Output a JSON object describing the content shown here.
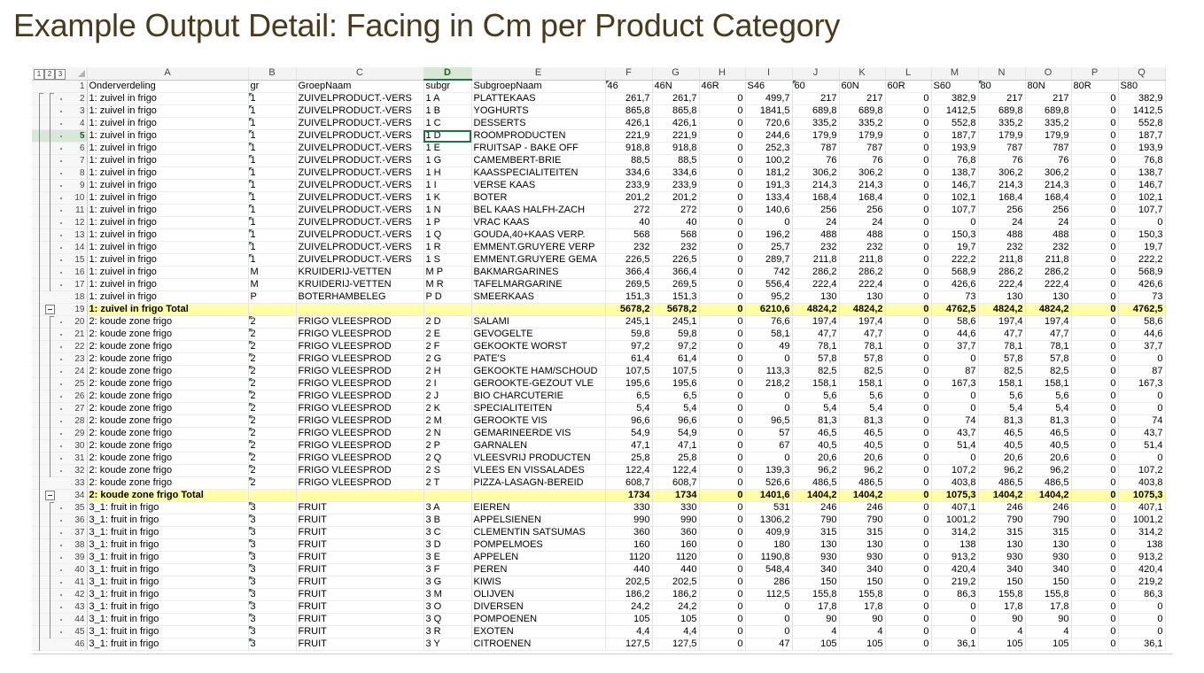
{
  "slide_title": "Example Output Detail: Facing in Cm per Product Category",
  "outline_levels": [
    "1",
    "2",
    "3"
  ],
  "columns": [
    "A",
    "B",
    "C",
    "D",
    "E",
    "F",
    "G",
    "H",
    "I",
    "J",
    "K",
    "L",
    "M",
    "N",
    "O",
    "P",
    "Q"
  ],
  "active_column": "D",
  "active_row": "5",
  "header_row": {
    "rn": "1",
    "cells": [
      "Onderverdeling",
      "gr",
      "GroepNaam",
      "subgr",
      "SubgroepNaam",
      "46",
      "46N",
      "46R",
      "S46",
      "60",
      "60N",
      "60R",
      "S60",
      "80",
      "80N",
      "80R",
      "S80"
    ]
  },
  "rows": [
    {
      "rn": "2",
      "cells": [
        "1: zuivel in frigo",
        "1",
        "ZUIVELPRODUCT.-VERS",
        "1 A",
        "PLATTEKAAS",
        "261,7",
        "261,7",
        "0",
        "499,7",
        "217",
        "217",
        "0",
        "382,9",
        "217",
        "217",
        "0",
        "382,9"
      ]
    },
    {
      "rn": "3",
      "cells": [
        "1: zuivel in frigo",
        "1",
        "ZUIVELPRODUCT.-VERS",
        "1 B",
        "YOGHURTS",
        "865,8",
        "865,8",
        "0",
        "1841,5",
        "689,8",
        "689,8",
        "0",
        "1412,5",
        "689,8",
        "689,8",
        "0",
        "1412,5"
      ]
    },
    {
      "rn": "4",
      "cells": [
        "1: zuivel in frigo",
        "1",
        "ZUIVELPRODUCT.-VERS",
        "1 C",
        "DESSERTS",
        "426,1",
        "426,1",
        "0",
        "720,6",
        "335,2",
        "335,2",
        "0",
        "552,8",
        "335,2",
        "335,2",
        "0",
        "552,8"
      ]
    },
    {
      "rn": "5",
      "cells": [
        "1: zuivel in frigo",
        "1",
        "ZUIVELPRODUCT.-VERS",
        "1 D",
        "ROOMPRODUCTEN",
        "221,9",
        "221,9",
        "0",
        "244,6",
        "179,9",
        "179,9",
        "0",
        "187,7",
        "179,9",
        "179,9",
        "0",
        "187,7"
      ]
    },
    {
      "rn": "6",
      "cells": [
        "1: zuivel in frigo",
        "1",
        "ZUIVELPRODUCT.-VERS",
        "1 E",
        "FRUITSAP - BAKE OFF",
        "918,8",
        "918,8",
        "0",
        "252,3",
        "787",
        "787",
        "0",
        "193,9",
        "787",
        "787",
        "0",
        "193,9"
      ]
    },
    {
      "rn": "7",
      "cells": [
        "1: zuivel in frigo",
        "1",
        "ZUIVELPRODUCT.-VERS",
        "1 G",
        "CAMEMBERT-BRIE",
        "88,5",
        "88,5",
        "0",
        "100,2",
        "76",
        "76",
        "0",
        "76,8",
        "76",
        "76",
        "0",
        "76,8"
      ]
    },
    {
      "rn": "8",
      "cells": [
        "1: zuivel in frigo",
        "1",
        "ZUIVELPRODUCT.-VERS",
        "1 H",
        "KAASSPECIALITEITEN",
        "334,6",
        "334,6",
        "0",
        "181,2",
        "306,2",
        "306,2",
        "0",
        "138,7",
        "306,2",
        "306,2",
        "0",
        "138,7"
      ]
    },
    {
      "rn": "9",
      "cells": [
        "1: zuivel in frigo",
        "1",
        "ZUIVELPRODUCT.-VERS",
        "1 I",
        "VERSE KAAS",
        "233,9",
        "233,9",
        "0",
        "191,3",
        "214,3",
        "214,3",
        "0",
        "146,7",
        "214,3",
        "214,3",
        "0",
        "146,7"
      ]
    },
    {
      "rn": "10",
      "cells": [
        "1: zuivel in frigo",
        "1",
        "ZUIVELPRODUCT.-VERS",
        "1 K",
        "BOTER",
        "201,2",
        "201,2",
        "0",
        "133,4",
        "168,4",
        "168,4",
        "0",
        "102,1",
        "168,4",
        "168,4",
        "0",
        "102,1"
      ]
    },
    {
      "rn": "11",
      "cells": [
        "1: zuivel in frigo",
        "1",
        "ZUIVELPRODUCT.-VERS",
        "1 N",
        "BEL KAAS HALFH-ZACH",
        "272",
        "272",
        "0",
        "140,6",
        "256",
        "256",
        "0",
        "107,7",
        "256",
        "256",
        "0",
        "107,7"
      ]
    },
    {
      "rn": "12",
      "cells": [
        "1: zuivel in frigo",
        "1",
        "ZUIVELPRODUCT.-VERS",
        "1 P",
        "VRAC KAAS",
        "40",
        "40",
        "0",
        "0",
        "24",
        "24",
        "0",
        "0",
        "24",
        "24",
        "0",
        "0"
      ]
    },
    {
      "rn": "13",
      "cells": [
        "1: zuivel in frigo",
        "1",
        "ZUIVELPRODUCT.-VERS",
        "1 Q",
        "GOUDA,40+KAAS VERP.",
        "568",
        "568",
        "0",
        "196,2",
        "488",
        "488",
        "0",
        "150,3",
        "488",
        "488",
        "0",
        "150,3"
      ]
    },
    {
      "rn": "14",
      "cells": [
        "1: zuivel in frigo",
        "1",
        "ZUIVELPRODUCT.-VERS",
        "1 R",
        "EMMENT.GRUYERE VERP",
        "232",
        "232",
        "0",
        "25,7",
        "232",
        "232",
        "0",
        "19,7",
        "232",
        "232",
        "0",
        "19,7"
      ]
    },
    {
      "rn": "15",
      "cells": [
        "1: zuivel in frigo",
        "1",
        "ZUIVELPRODUCT.-VERS",
        "1 S",
        "EMMENT.GRUYERE GEMA",
        "226,5",
        "226,5",
        "0",
        "289,7",
        "211,8",
        "211,8",
        "0",
        "222,2",
        "211,8",
        "211,8",
        "0",
        "222,2"
      ]
    },
    {
      "rn": "16",
      "cells": [
        "1: zuivel in frigo",
        "M",
        "KRUIDERIJ-VETTEN",
        "M P",
        "BAKMARGARINES",
        "366,4",
        "366,4",
        "0",
        "742",
        "286,2",
        "286,2",
        "0",
        "568,9",
        "286,2",
        "286,2",
        "0",
        "568,9"
      ]
    },
    {
      "rn": "17",
      "cells": [
        "1: zuivel in frigo",
        "M",
        "KRUIDERIJ-VETTEN",
        "M R",
        "TAFELMARGARINE",
        "269,5",
        "269,5",
        "0",
        "556,4",
        "222,4",
        "222,4",
        "0",
        "426,6",
        "222,4",
        "222,4",
        "0",
        "426,6"
      ]
    },
    {
      "rn": "18",
      "cells": [
        "1: zuivel in frigo",
        "P",
        "BOTERHAMBELEG",
        "P D",
        "SMEERKAAS",
        "151,3",
        "151,3",
        "0",
        "95,2",
        "130",
        "130",
        "0",
        "73",
        "130",
        "130",
        "0",
        "73"
      ]
    },
    {
      "rn": "19",
      "total": true,
      "cells": [
        "1: zuivel in frigo Total",
        "",
        "",
        "",
        "",
        "5678,2",
        "5678,2",
        "0",
        "6210,6",
        "4824,2",
        "4824,2",
        "0",
        "4762,5",
        "4824,2",
        "4824,2",
        "0",
        "4762,5"
      ]
    },
    {
      "rn": "20",
      "cells": [
        "2: koude zone frigo",
        "2",
        "FRIGO VLEESPROD",
        "2 D",
        "SALAMI",
        "245,1",
        "245,1",
        "0",
        "76,6",
        "197,4",
        "197,4",
        "0",
        "58,6",
        "197,4",
        "197,4",
        "0",
        "58,6"
      ]
    },
    {
      "rn": "21",
      "cells": [
        "2: koude zone frigo",
        "2",
        "FRIGO VLEESPROD",
        "2 E",
        "GEVOGELTE",
        "59,8",
        "59,8",
        "0",
        "58,1",
        "47,7",
        "47,7",
        "0",
        "44,6",
        "47,7",
        "47,7",
        "0",
        "44,6"
      ]
    },
    {
      "rn": "22",
      "cells": [
        "2: koude zone frigo",
        "2",
        "FRIGO VLEESPROD",
        "2 F",
        "GEKOOKTE WORST",
        "97,2",
        "97,2",
        "0",
        "49",
        "78,1",
        "78,1",
        "0",
        "37,7",
        "78,1",
        "78,1",
        "0",
        "37,7"
      ]
    },
    {
      "rn": "23",
      "cells": [
        "2: koude zone frigo",
        "2",
        "FRIGO VLEESPROD",
        "2 G",
        "PATE'S",
        "61,4",
        "61,4",
        "0",
        "0",
        "57,8",
        "57,8",
        "0",
        "0",
        "57,8",
        "57,8",
        "0",
        "0"
      ]
    },
    {
      "rn": "24",
      "cells": [
        "2: koude zone frigo",
        "2",
        "FRIGO VLEESPROD",
        "2 H",
        "GEKOOKTE HAM/SCHOUD",
        "107,5",
        "107,5",
        "0",
        "113,3",
        "82,5",
        "82,5",
        "0",
        "87",
        "82,5",
        "82,5",
        "0",
        "87"
      ]
    },
    {
      "rn": "25",
      "cells": [
        "2: koude zone frigo",
        "2",
        "FRIGO VLEESPROD",
        "2 I",
        "GEROOKTE-GEZOUT VLE",
        "195,6",
        "195,6",
        "0",
        "218,2",
        "158,1",
        "158,1",
        "0",
        "167,3",
        "158,1",
        "158,1",
        "0",
        "167,3"
      ]
    },
    {
      "rn": "26",
      "cells": [
        "2: koude zone frigo",
        "2",
        "FRIGO VLEESPROD",
        "2 J",
        "BIO CHARCUTERIE",
        "6,5",
        "6,5",
        "0",
        "0",
        "5,6",
        "5,6",
        "0",
        "0",
        "5,6",
        "5,6",
        "0",
        "0"
      ]
    },
    {
      "rn": "27",
      "cells": [
        "2: koude zone frigo",
        "2",
        "FRIGO VLEESPROD",
        "2 K",
        "SPECIALITEITEN",
        "5,4",
        "5,4",
        "0",
        "0",
        "5,4",
        "5,4",
        "0",
        "0",
        "5,4",
        "5,4",
        "0",
        "0"
      ]
    },
    {
      "rn": "28",
      "cells": [
        "2: koude zone frigo",
        "2",
        "FRIGO VLEESPROD",
        "2 M",
        "GEROOKTE VIS",
        "96,6",
        "96,6",
        "0",
        "96,5",
        "81,3",
        "81,3",
        "0",
        "74",
        "81,3",
        "81,3",
        "0",
        "74"
      ]
    },
    {
      "rn": "29",
      "cells": [
        "2: koude zone frigo",
        "2",
        "FRIGO VLEESPROD",
        "2 N",
        "GEMARINEERDE VIS",
        "54,9",
        "54,9",
        "0",
        "57",
        "46,5",
        "46,5",
        "0",
        "43,7",
        "46,5",
        "46,5",
        "0",
        "43,7"
      ]
    },
    {
      "rn": "30",
      "cells": [
        "2: koude zone frigo",
        "2",
        "FRIGO VLEESPROD",
        "2 P",
        "GARNALEN",
        "47,1",
        "47,1",
        "0",
        "67",
        "40,5",
        "40,5",
        "0",
        "51,4",
        "40,5",
        "40,5",
        "0",
        "51,4"
      ]
    },
    {
      "rn": "31",
      "cells": [
        "2: koude zone frigo",
        "2",
        "FRIGO VLEESPROD",
        "2 Q",
        "VLEESVRIJ PRODUCTEN",
        "25,8",
        "25,8",
        "0",
        "0",
        "20,6",
        "20,6",
        "0",
        "0",
        "20,6",
        "20,6",
        "0",
        "0"
      ]
    },
    {
      "rn": "32",
      "cells": [
        "2: koude zone frigo",
        "2",
        "FRIGO VLEESPROD",
        "2 S",
        "VLEES EN VISSALADES",
        "122,4",
        "122,4",
        "0",
        "139,3",
        "96,2",
        "96,2",
        "0",
        "107,2",
        "96,2",
        "96,2",
        "0",
        "107,2"
      ]
    },
    {
      "rn": "33",
      "cells": [
        "2: koude zone frigo",
        "2",
        "FRIGO VLEESPROD",
        "2 T",
        "PIZZA-LASAGN-BEREID",
        "608,7",
        "608,7",
        "0",
        "526,6",
        "486,5",
        "486,5",
        "0",
        "403,8",
        "486,5",
        "486,5",
        "0",
        "403,8"
      ]
    },
    {
      "rn": "34",
      "total": true,
      "cells": [
        "2: koude zone frigo Total",
        "",
        "",
        "",
        "",
        "1734",
        "1734",
        "0",
        "1401,6",
        "1404,2",
        "1404,2",
        "0",
        "1075,3",
        "1404,2",
        "1404,2",
        "0",
        "1075,3"
      ]
    },
    {
      "rn": "35",
      "cells": [
        "3_1: fruit in frigo",
        "3",
        "FRUIT",
        "3 A",
        "EIEREN",
        "330",
        "330",
        "0",
        "531",
        "246",
        "246",
        "0",
        "407,1",
        "246",
        "246",
        "0",
        "407,1"
      ]
    },
    {
      "rn": "36",
      "cells": [
        "3_1: fruit in frigo",
        "3",
        "FRUIT",
        "3 B",
        "APPELSIENEN",
        "990",
        "990",
        "0",
        "1306,2",
        "790",
        "790",
        "0",
        "1001,2",
        "790",
        "790",
        "0",
        "1001,2"
      ]
    },
    {
      "rn": "37",
      "cells": [
        "3_1: fruit in frigo",
        "3",
        "FRUIT",
        "3 C",
        "CLEMENTIN SATSUMAS",
        "360",
        "360",
        "0",
        "409,9",
        "315",
        "315",
        "0",
        "314,2",
        "315",
        "315",
        "0",
        "314,2"
      ]
    },
    {
      "rn": "38",
      "cells": [
        "3_1: fruit in frigo",
        "3",
        "FRUIT",
        "3 D",
        "POMPELMOES",
        "160",
        "160",
        "0",
        "180",
        "130",
        "130",
        "0",
        "138",
        "130",
        "130",
        "0",
        "138"
      ]
    },
    {
      "rn": "39",
      "cells": [
        "3_1: fruit in frigo",
        "3",
        "FRUIT",
        "3 E",
        "APPELEN",
        "1120",
        "1120",
        "0",
        "1190,8",
        "930",
        "930",
        "0",
        "913,2",
        "930",
        "930",
        "0",
        "913,2"
      ]
    },
    {
      "rn": "40",
      "cells": [
        "3_1: fruit in frigo",
        "3",
        "FRUIT",
        "3 F",
        "PEREN",
        "440",
        "440",
        "0",
        "548,4",
        "340",
        "340",
        "0",
        "420,4",
        "340",
        "340",
        "0",
        "420,4"
      ]
    },
    {
      "rn": "41",
      "cells": [
        "3_1: fruit in frigo",
        "3",
        "FRUIT",
        "3 G",
        "KIWIS",
        "202,5",
        "202,5",
        "0",
        "286",
        "150",
        "150",
        "0",
        "219,2",
        "150",
        "150",
        "0",
        "219,2"
      ]
    },
    {
      "rn": "42",
      "cells": [
        "3_1: fruit in frigo",
        "3",
        "FRUIT",
        "3 M",
        "OLIJVEN",
        "186,2",
        "186,2",
        "0",
        "112,5",
        "155,8",
        "155,8",
        "0",
        "86,3",
        "155,8",
        "155,8",
        "0",
        "86,3"
      ]
    },
    {
      "rn": "43",
      "cells": [
        "3_1: fruit in frigo",
        "3",
        "FRUIT",
        "3 O",
        "DIVERSEN",
        "24,2",
        "24,2",
        "0",
        "0",
        "17,8",
        "17,8",
        "0",
        "0",
        "17,8",
        "17,8",
        "0",
        "0"
      ]
    },
    {
      "rn": "44",
      "cells": [
        "3_1: fruit in frigo",
        "3",
        "FRUIT",
        "3 Q",
        "POMPOENEN",
        "105",
        "105",
        "0",
        "0",
        "90",
        "90",
        "0",
        "0",
        "90",
        "90",
        "0",
        "0"
      ]
    },
    {
      "rn": "45",
      "cells": [
        "3_1: fruit in frigo",
        "3",
        "FRUIT",
        "3 R",
        "EXOTEN",
        "4,4",
        "4,4",
        "0",
        "0",
        "4",
        "4",
        "0",
        "0",
        "4",
        "4",
        "0",
        "0"
      ]
    },
    {
      "rn": "46",
      "cells": [
        "3_1: fruit in frigo",
        "3",
        "FRUIT",
        "3 Y",
        "CITROENEN",
        "127,5",
        "127,5",
        "0",
        "47",
        "105",
        "105",
        "0",
        "36,1",
        "105",
        "105",
        "0",
        "36,1"
      ]
    }
  ]
}
